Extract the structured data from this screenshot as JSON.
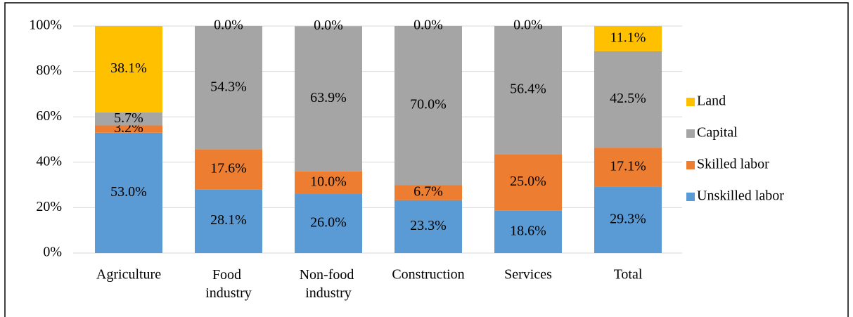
{
  "chart_data": {
    "type": "stacked_bar",
    "categories": [
      "Agriculture",
      "Food industry",
      "Non-food industry",
      "Construction",
      "Services",
      "Total"
    ],
    "series": [
      {
        "name": "Unskilled labor",
        "color": "#5b9bd5",
        "values": [
          53.0,
          28.1,
          26.0,
          23.3,
          18.6,
          29.3
        ],
        "value_labels": [
          "53.0%",
          "28.1%",
          "26.0%",
          "23.3%",
          "18.6%",
          "29.3%"
        ]
      },
      {
        "name": "Skilled labor",
        "color": "#ed7d31",
        "values": [
          3.2,
          17.6,
          10.0,
          6.7,
          25.0,
          17.1
        ],
        "value_labels": [
          "3.2%",
          "17.6%",
          "10.0%",
          "6.7%",
          "25.0%",
          "17.1%"
        ]
      },
      {
        "name": "Capital",
        "color": "#a5a5a5",
        "values": [
          5.7,
          54.3,
          63.9,
          70.0,
          56.4,
          42.5
        ],
        "value_labels": [
          "5.7%",
          "54.3%",
          "63.9%",
          "70.0%",
          "56.4%",
          "42.5%"
        ]
      },
      {
        "name": "Land",
        "color": "#ffc000",
        "values": [
          38.1,
          0.0,
          0.0,
          0.0,
          0.0,
          11.1
        ],
        "value_labels": [
          "38.1%",
          "0.0%",
          "0.0%",
          "0.0%",
          "0.0%",
          "11.1%"
        ]
      }
    ],
    "ylim": [
      0,
      100
    ],
    "yticks": [
      {
        "value": 0,
        "label": "0%"
      },
      {
        "value": 20,
        "label": "20%"
      },
      {
        "value": 40,
        "label": "40%"
      },
      {
        "value": 60,
        "label": "60%"
      },
      {
        "value": 80,
        "label": "80%"
      },
      {
        "value": 100,
        "label": "100%"
      }
    ],
    "grid": true,
    "legend": "right"
  }
}
